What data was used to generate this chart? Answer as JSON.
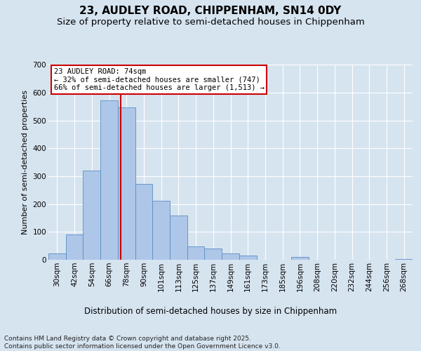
{
  "title1": "23, AUDLEY ROAD, CHIPPENHAM, SN14 0DY",
  "title2": "Size of property relative to semi-detached houses in Chippenham",
  "xlabel": "Distribution of semi-detached houses by size in Chippenham",
  "ylabel": "Number of semi-detached properties",
  "categories": [
    "30sqm",
    "42sqm",
    "54sqm",
    "66sqm",
    "78sqm",
    "90sqm",
    "101sqm",
    "113sqm",
    "125sqm",
    "137sqm",
    "149sqm",
    "161sqm",
    "173sqm",
    "185sqm",
    "196sqm",
    "208sqm",
    "220sqm",
    "232sqm",
    "244sqm",
    "256sqm",
    "268sqm"
  ],
  "values": [
    22,
    90,
    320,
    572,
    547,
    272,
    213,
    158,
    48,
    40,
    22,
    14,
    0,
    0,
    9,
    0,
    0,
    0,
    0,
    0,
    2
  ],
  "bar_color": "#aec6e8",
  "bar_edge_color": "#5a8fc2",
  "property_label": "23 AUDLEY ROAD: 74sqm",
  "pct_smaller": 32,
  "count_smaller": 747,
  "pct_larger": 66,
  "count_larger": 1513,
  "background_color": "#d6e4f0",
  "plot_bg_color": "#d6e4f0",
  "grid_color": "#ffffff",
  "annotation_box_color": "#ffffff",
  "annotation_border_color": "#cc0000",
  "vline_color": "#cc0000",
  "footer_text": "Contains HM Land Registry data © Crown copyright and database right 2025.\nContains public sector information licensed under the Open Government Licence v3.0.",
  "ylim": [
    0,
    700
  ],
  "title_fontsize": 11,
  "subtitle_fontsize": 9.5,
  "axis_label_fontsize": 8.5,
  "tick_fontsize": 7.5,
  "annotation_fontsize": 7.5,
  "footer_fontsize": 6.5,
  "ylabel_fontsize": 8
}
